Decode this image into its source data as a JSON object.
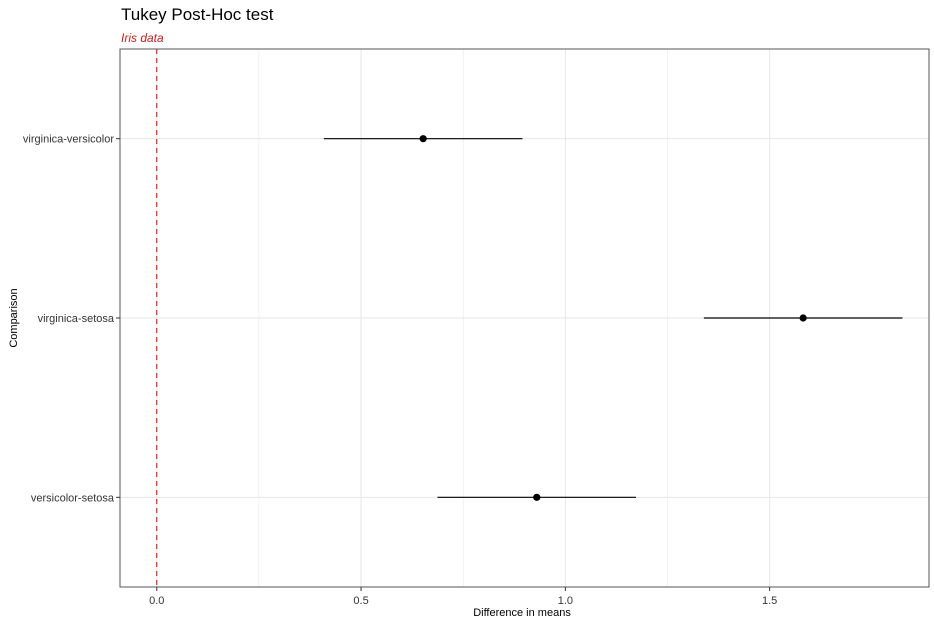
{
  "chart_data": {
    "type": "scatter",
    "title": "Tukey Post-Hoc test",
    "subtitle": "Iris data",
    "xlabel": "Difference in means",
    "ylabel": "Comparison",
    "xlim": [
      -0.09,
      1.89
    ],
    "x_ticks": [
      0.0,
      0.5,
      1.0,
      1.5
    ],
    "x_tick_labels": [
      "0.0",
      "0.5",
      "1.0",
      "1.5"
    ],
    "categories": [
      "virginica-versicolor",
      "virginica-setosa",
      "versicolor-setosa"
    ],
    "estimates": [
      0.652,
      1.582,
      0.93
    ],
    "lower": [
      0.409,
      1.339,
      0.687
    ],
    "upper": [
      0.895,
      1.825,
      1.173
    ],
    "reference_line": 0,
    "grid": true,
    "colors": {
      "points": "#000000",
      "reference_line": "#cc0000",
      "subtitle": "#c41e1e",
      "grid": "#e6e6e6",
      "panel_border": "#555555"
    }
  }
}
